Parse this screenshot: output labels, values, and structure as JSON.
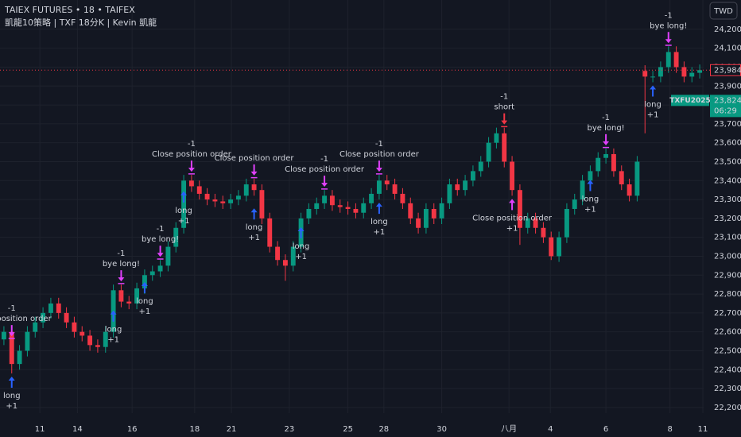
{
  "header": {
    "symbol_line": "TAIEX FUTURES • 18 • TAIFEX",
    "strategy_line": "凱龍10策略 | TXF 18分K | Kevin 凱龍",
    "currency": "TWD"
  },
  "chart_data": {
    "type": "candlestick",
    "up_color": "#089981",
    "down_color": "#f23645",
    "grid": true,
    "x": [
      0,
      1,
      2,
      3,
      4,
      5,
      6,
      7,
      8,
      9,
      10,
      11,
      12,
      13,
      14,
      15,
      16,
      17,
      18,
      19,
      20,
      21,
      22,
      23,
      24,
      25,
      26,
      27,
      28,
      29,
      30,
      31,
      32,
      33,
      34,
      35,
      36,
      37,
      38,
      39,
      40,
      41,
      42,
      43,
      44,
      45,
      46,
      47,
      48,
      49,
      50,
      51,
      52,
      53,
      54,
      55,
      56,
      57,
      58,
      59,
      60,
      61,
      62,
      63,
      64,
      65,
      66,
      67,
      68,
      69,
      70,
      71,
      72,
      73,
      74,
      75,
      76,
      77,
      78,
      79,
      80,
      81,
      82,
      83,
      84,
      85,
      86,
      87,
      88,
      89
    ],
    "open": [
      22560,
      22600,
      22430,
      22500,
      22600,
      22650,
      22700,
      22750,
      22700,
      22650,
      22600,
      22580,
      22530,
      22520,
      22600,
      22820,
      22760,
      22750,
      22830,
      22900,
      22920,
      22950,
      23050,
      23150,
      23400,
      23370,
      23330,
      23300,
      23290,
      23280,
      23300,
      23320,
      23380,
      23350,
      23200,
      23050,
      22980,
      22950,
      23050,
      23200,
      23250,
      23280,
      23320,
      23270,
      23260,
      23250,
      23230,
      23280,
      23330,
      23400,
      23380,
      23330,
      23280,
      23200,
      23150,
      23250,
      23200,
      23280,
      23380,
      23350,
      23400,
      23450,
      23500,
      23600,
      23650,
      23500,
      23350,
      23150,
      23200,
      23150,
      23100,
      23000,
      23100,
      23250,
      23300,
      23400,
      23450,
      23520,
      23540,
      23450,
      23380,
      23320,
      23980,
      23950,
      23950,
      24000,
      24080,
      24000,
      23950,
      23970
    ],
    "high": [
      22630,
      22630,
      22530,
      22630,
      22680,
      22730,
      22780,
      22780,
      22730,
      22680,
      22630,
      22610,
      22560,
      22630,
      22850,
      22850,
      22790,
      22860,
      22930,
      22950,
      22980,
      23080,
      23180,
      23430,
      23430,
      23400,
      23360,
      23330,
      23320,
      23330,
      23350,
      23410,
      23410,
      23380,
      23230,
      23080,
      23010,
      23080,
      23230,
      23280,
      23310,
      23350,
      23350,
      23300,
      23290,
      23280,
      23310,
      23360,
      23430,
      23430,
      23410,
      23360,
      23310,
      23230,
      23280,
      23280,
      23310,
      23410,
      23410,
      23430,
      23480,
      23530,
      23630,
      23680,
      23680,
      23530,
      23380,
      23230,
      23230,
      23180,
      23130,
      23130,
      23280,
      23330,
      23430,
      23480,
      23550,
      23570,
      23570,
      23480,
      23410,
      23530,
      24010,
      23980,
      24030,
      24110,
      24110,
      24030,
      24000,
      24014
    ],
    "low": [
      22530,
      22380,
      22400,
      22470,
      22570,
      22620,
      22670,
      22670,
      22620,
      22570,
      22550,
      22500,
      22490,
      22490,
      22570,
      22730,
      22720,
      22720,
      22800,
      22870,
      22890,
      22920,
      23020,
      23120,
      23340,
      23300,
      23270,
      23260,
      23250,
      23250,
      23270,
      23290,
      23320,
      23170,
      23020,
      22950,
      22870,
      22920,
      23020,
      23170,
      23220,
      23250,
      23240,
      23230,
      23220,
      23200,
      23200,
      23250,
      23300,
      23350,
      23300,
      23250,
      23170,
      23120,
      23120,
      23170,
      23170,
      23250,
      23320,
      23320,
      23370,
      23420,
      23470,
      23570,
      23470,
      23320,
      23060,
      23120,
      23120,
      23070,
      22980,
      22970,
      23070,
      23220,
      23270,
      23370,
      23420,
      23490,
      23420,
      23350,
      23290,
      23290,
      23650,
      23920,
      23920,
      23970,
      23970,
      23920,
      23920,
      23940
    ],
    "close": [
      22600,
      22430,
      22500,
      22600,
      22650,
      22700,
      22750,
      22700,
      22650,
      22600,
      22580,
      22530,
      22520,
      22600,
      22820,
      22760,
      22750,
      22830,
      22900,
      22920,
      22950,
      23050,
      23150,
      23400,
      23370,
      23330,
      23300,
      23290,
      23280,
      23300,
      23320,
      23380,
      23350,
      23200,
      23050,
      22980,
      22950,
      23050,
      23200,
      23250,
      23280,
      23320,
      23270,
      23260,
      23250,
      23230,
      23280,
      23330,
      23400,
      23380,
      23330,
      23280,
      23200,
      23150,
      23250,
      23200,
      23280,
      23380,
      23350,
      23400,
      23450,
      23500,
      23600,
      23650,
      23500,
      23350,
      23150,
      23200,
      23150,
      23100,
      23000,
      23100,
      23250,
      23300,
      23400,
      23450,
      23520,
      23540,
      23450,
      23380,
      23320,
      23500,
      23950,
      23950,
      24000,
      24080,
      24000,
      23950,
      23970,
      23984
    ],
    "xlim": [
      -0.5,
      89.5
    ],
    "xticks": [
      {
        "value": 4.6,
        "label": "11"
      },
      {
        "value": 9.4,
        "label": "14"
      },
      {
        "value": 16.4,
        "label": "16"
      },
      {
        "value": 24.4,
        "label": "18"
      },
      {
        "value": 29.1,
        "label": "21"
      },
      {
        "value": 36.5,
        "label": "23"
      },
      {
        "value": 44,
        "label": "25"
      },
      {
        "value": 48.6,
        "label": "28"
      },
      {
        "value": 56,
        "label": "30"
      },
      {
        "value": 64.6,
        "label": "八月"
      },
      {
        "value": 69.9,
        "label": "4"
      },
      {
        "value": 77,
        "label": "6"
      },
      {
        "value": 85.2,
        "label": "8"
      },
      {
        "value": 89.4,
        "label": "11"
      }
    ],
    "ylim": [
      22170,
      24355
    ],
    "yticks": [
      {
        "value": 22200,
        "label": "22,200"
      },
      {
        "value": 22300,
        "label": "22,300"
      },
      {
        "value": 22400,
        "label": "22,400"
      },
      {
        "value": 22500,
        "label": "22,500"
      },
      {
        "value": 22600,
        "label": "22,600"
      },
      {
        "value": 22700,
        "label": "22,700"
      },
      {
        "value": 22800,
        "label": "22,800"
      },
      {
        "value": 22900,
        "label": "22,900"
      },
      {
        "value": 23000,
        "label": "23,000"
      },
      {
        "value": 23100,
        "label": "23,100"
      },
      {
        "value": 23200,
        "label": "23,200"
      },
      {
        "value": 23300,
        "label": "23,300"
      },
      {
        "value": 23400,
        "label": "23,400"
      },
      {
        "value": 23500,
        "label": "23,500"
      },
      {
        "value": 23600,
        "label": "23,600"
      },
      {
        "value": 23700,
        "label": "23,700"
      },
      {
        "value": 23800,
        "label": "23,800"
      },
      {
        "value": 23900,
        "label": "23,900"
      },
      {
        "value": 24000,
        "label": "24,000"
      },
      {
        "value": 24100,
        "label": "24,100"
      },
      {
        "value": 24200,
        "label": "24,200"
      }
    ],
    "signals": [
      {
        "x": 1,
        "y": 22380,
        "position": "below",
        "texts": [
          "long",
          "+1"
        ],
        "color": "#2962ff"
      },
      {
        "x": 1,
        "y": 22560,
        "position": "above",
        "texts": [
          "-1",
          "Close position order"
        ],
        "color": "#e040fb"
      },
      {
        "x": 14,
        "y": 22730,
        "position": "below",
        "texts": [
          "long",
          "+1"
        ],
        "color": "#2962ff"
      },
      {
        "x": 15,
        "y": 22850,
        "position": "above",
        "texts": [
          "-1",
          "bye long!"
        ],
        "color": "#e040fb"
      },
      {
        "x": 18,
        "y": 22880,
        "position": "below",
        "texts": [
          "long",
          "+1"
        ],
        "color": "#2962ff"
      },
      {
        "x": 20,
        "y": 22980,
        "position": "above",
        "texts": [
          "-1",
          "bye long!"
        ],
        "color": "#e040fb"
      },
      {
        "x": 23,
        "y": 23360,
        "position": "below",
        "texts": [
          "long",
          "+1"
        ],
        "color": "#2962ff"
      },
      {
        "x": 24,
        "y": 23430,
        "position": "above",
        "texts": [
          "-1",
          "Close position order"
        ],
        "color": "#e040fb"
      },
      {
        "x": 32,
        "y": 23270,
        "position": "below",
        "texts": [
          "long",
          "+1"
        ],
        "color": "#2962ff"
      },
      {
        "x": 32,
        "y": 23410,
        "position": "above",
        "texts": [
          "Close position order"
        ],
        "color": "#e040fb"
      },
      {
        "x": 38,
        "y": 23170,
        "position": "below",
        "texts": [
          "long",
          "+1"
        ],
        "color": "#2962ff"
      },
      {
        "x": 41,
        "y": 23350,
        "position": "above",
        "texts": [
          "-1",
          "Close position order"
        ],
        "color": "#e040fb"
      },
      {
        "x": 48,
        "y": 23300,
        "position": "below",
        "texts": [
          "long",
          "+1"
        ],
        "color": "#2962ff"
      },
      {
        "x": 48,
        "y": 23430,
        "position": "above",
        "texts": [
          "-1",
          "Close position order"
        ],
        "color": "#e040fb"
      },
      {
        "x": 64,
        "y": 23680,
        "position": "above",
        "texts": [
          "-1",
          "short"
        ],
        "color": "#f23645"
      },
      {
        "x": 65,
        "y": 23320,
        "position": "below",
        "texts": [
          "Close position order",
          "+1"
        ],
        "color": "#e040fb"
      },
      {
        "x": 75,
        "y": 23420,
        "position": "below",
        "texts": [
          "long",
          "+1"
        ],
        "color": "#2962ff"
      },
      {
        "x": 77,
        "y": 23570,
        "position": "above",
        "texts": [
          "-1",
          "bye long!"
        ],
        "color": "#e040fb"
      },
      {
        "x": 83,
        "y": 23920,
        "position": "below",
        "texts": [
          "long",
          "+1"
        ],
        "color": "#2962ff"
      },
      {
        "x": 85,
        "y": 24110,
        "position": "above",
        "texts": [
          "-1",
          "bye long!"
        ],
        "color": "#e040fb"
      }
    ],
    "price_tags": [
      {
        "value": 23984,
        "label": "23,984",
        "color": "#f23645"
      },
      {
        "value": 23824,
        "label": "23,824",
        "symbol": "TXFU2025",
        "countdown": "06:29",
        "color": "#089981"
      }
    ]
  }
}
